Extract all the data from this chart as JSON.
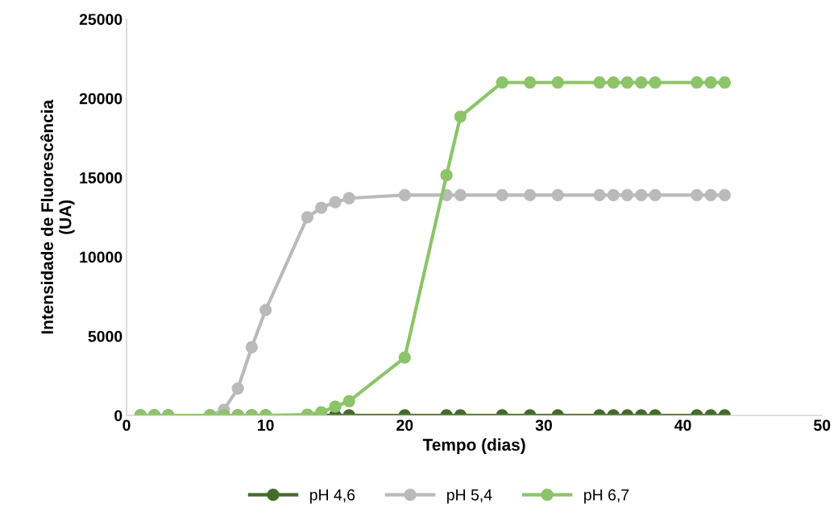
{
  "chart_data": {
    "type": "line",
    "xlabel": "Tempo (dias)",
    "ylabel": "Intensidade de Fluorescência\n(UA)",
    "x": [
      1,
      2,
      3,
      6,
      7,
      8,
      9,
      10,
      13,
      14,
      15,
      16,
      20,
      23,
      24,
      27,
      29,
      31,
      34,
      35,
      36,
      37,
      38,
      41,
      42,
      43
    ],
    "series": [
      {
        "name": "pH 4,6",
        "color": "#446b2a",
        "values": [
          0,
          0,
          0,
          0,
          0,
          0,
          0,
          0,
          0,
          0,
          0,
          0,
          0,
          0,
          0,
          0,
          0,
          0,
          0,
          0,
          0,
          0,
          0,
          0,
          0,
          0
        ]
      },
      {
        "name": "pH 5,4",
        "color": "#bababa",
        "values": [
          0,
          0,
          0,
          0,
          350,
          1700,
          4300,
          6650,
          12500,
          13100,
          13450,
          13700,
          13900,
          13900,
          13900,
          13900,
          13900,
          13900,
          13900,
          13900,
          13900,
          13900,
          13900,
          13900,
          13900,
          13900
        ]
      },
      {
        "name": "pH 6,7",
        "color": "#8cc468",
        "values": [
          0,
          0,
          0,
          0,
          0,
          0,
          0,
          0,
          50,
          200,
          550,
          900,
          3650,
          15150,
          18850,
          21000,
          21000,
          21000,
          21000,
          21000,
          21000,
          21000,
          21000,
          21000,
          21000,
          21000
        ]
      }
    ],
    "xlim": [
      0,
      50
    ],
    "xticks": [
      0,
      10,
      20,
      30,
      40,
      50
    ],
    "ylim": [
      0,
      25000
    ],
    "yticks": [
      0,
      5000,
      10000,
      15000,
      20000,
      25000
    ],
    "grid": false,
    "legend": "bottom",
    "marker": "circle",
    "line_style": "solid"
  }
}
